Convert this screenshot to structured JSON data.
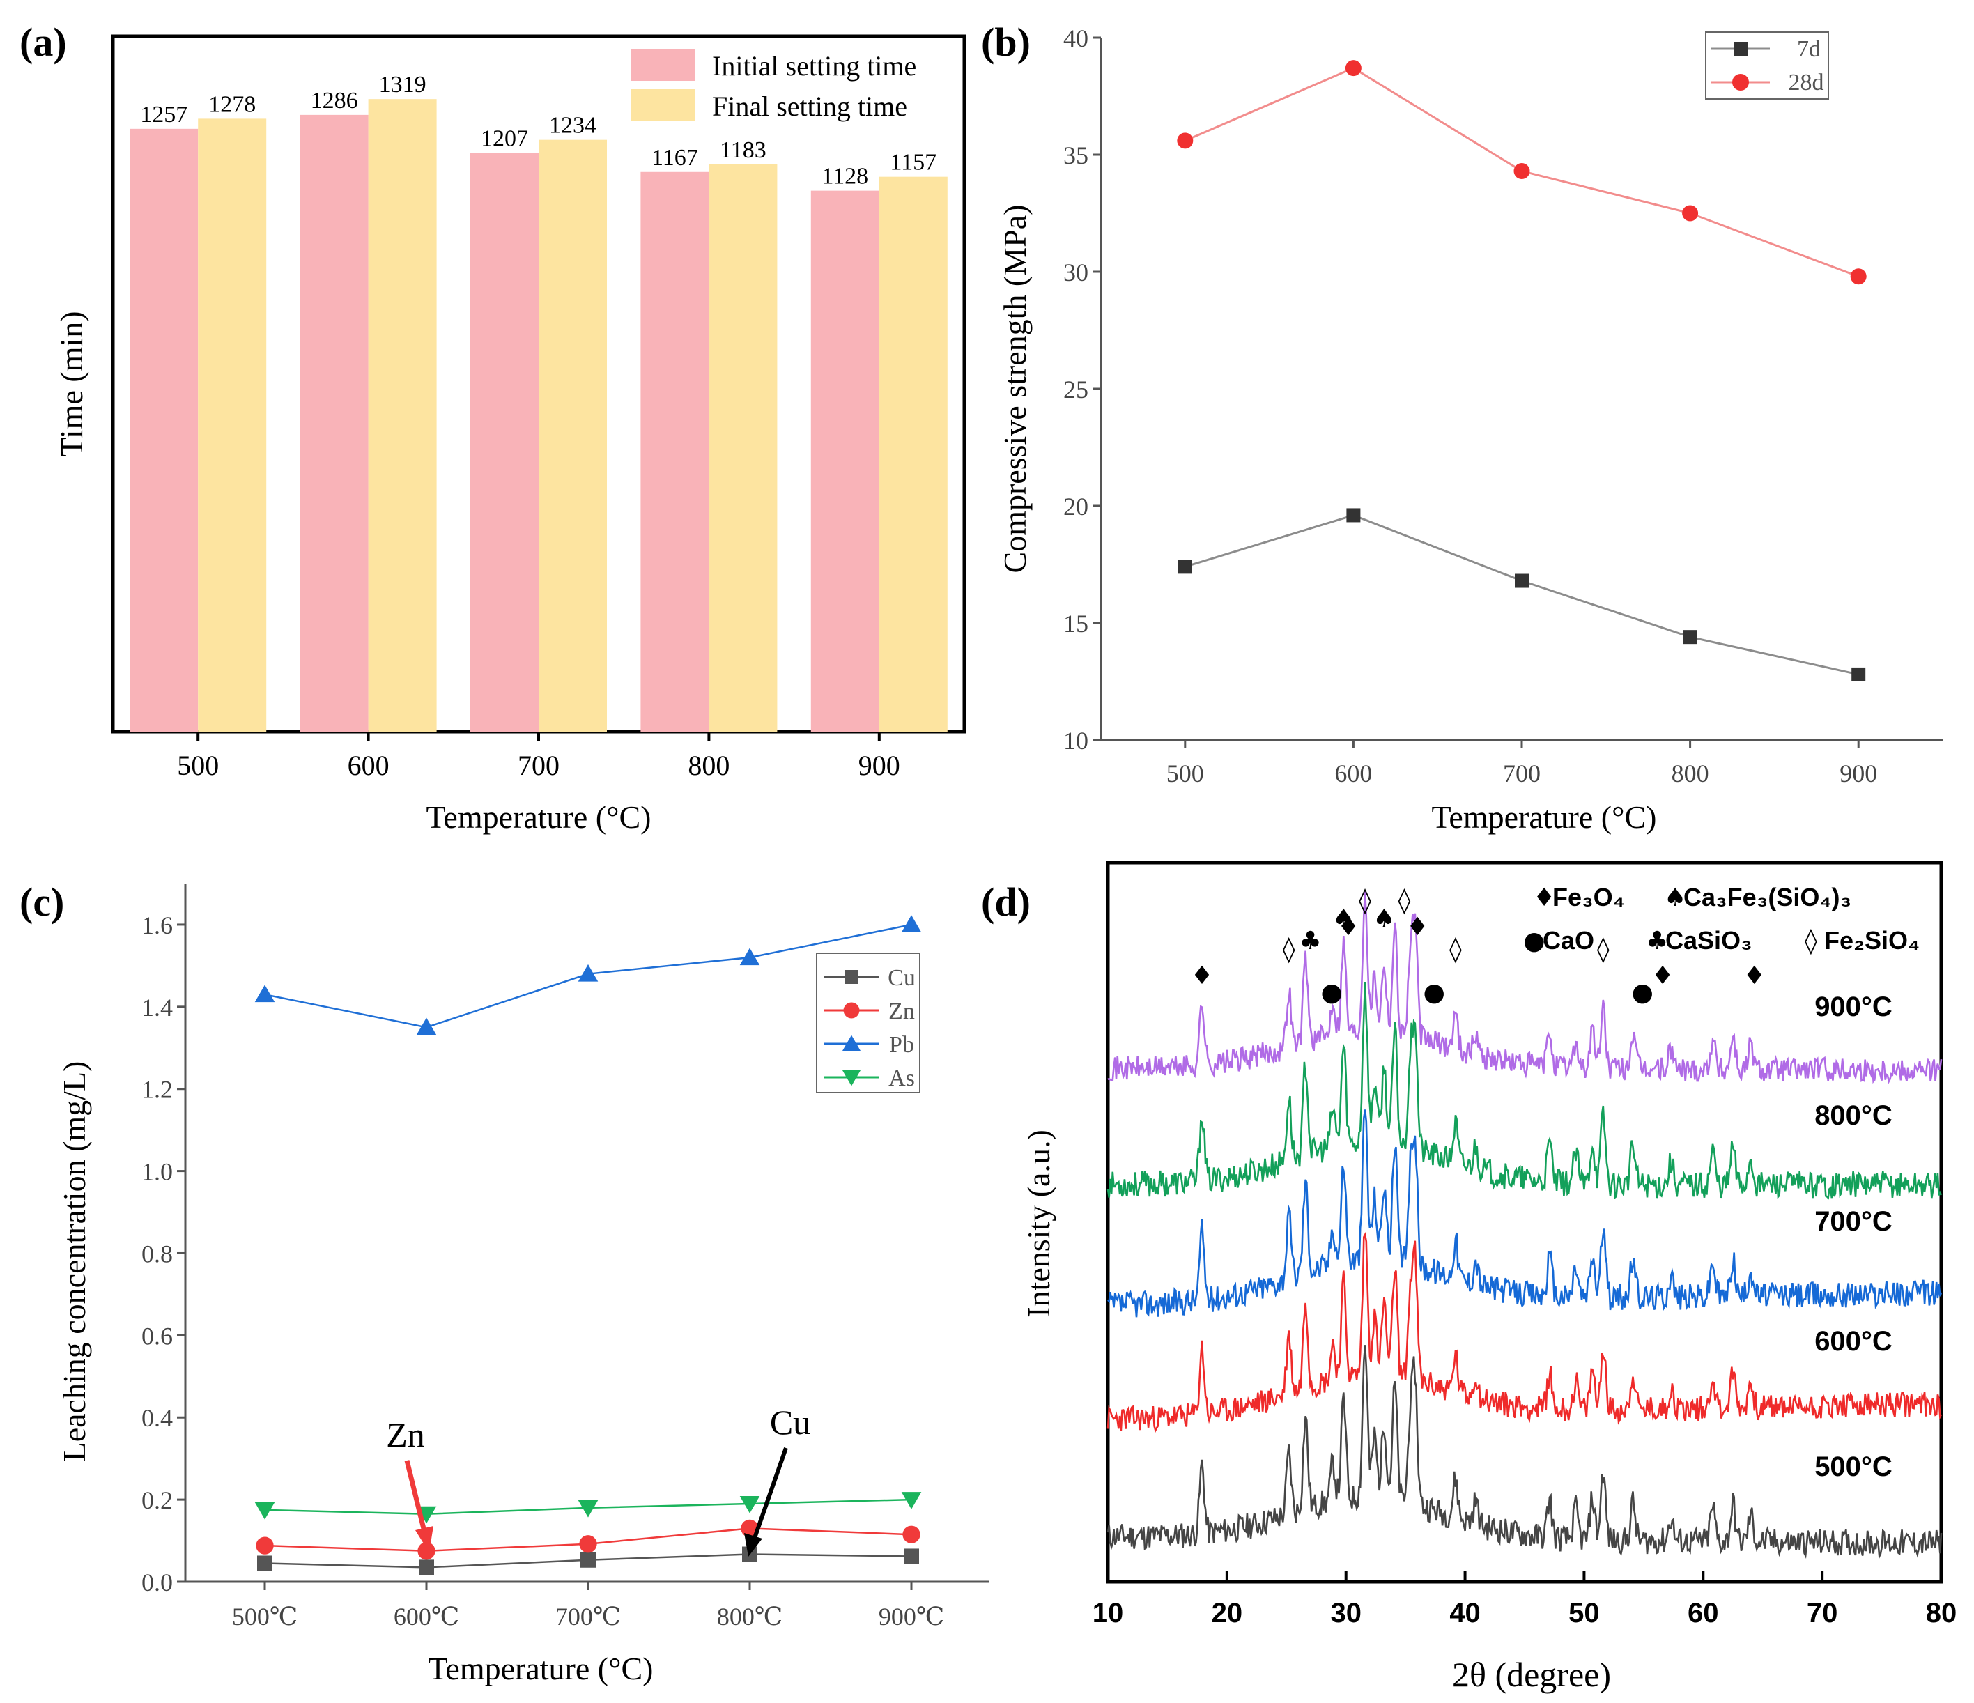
{
  "chart_data": [
    {
      "id": "a",
      "panel_label": "(a)",
      "type": "bar",
      "title": "",
      "xlabel": "Temperature (°C)",
      "ylabel": "Time (min)",
      "categories": [
        "500",
        "600",
        "700",
        "800",
        "900"
      ],
      "ylim": [
        0,
        1450
      ],
      "grid": false,
      "legend_position": "top-right",
      "series": [
        {
          "name": "Initial setting time",
          "color": "#f9b3b8",
          "values": [
            1257,
            1286,
            1207,
            1167,
            1128
          ]
        },
        {
          "name": "Final setting time",
          "color": "#fde4a0",
          "values": [
            1278,
            1319,
            1234,
            1183,
            1157
          ]
        }
      ]
    },
    {
      "id": "b",
      "panel_label": "(b)",
      "type": "line",
      "title": "",
      "xlabel": "Temperature (°C)",
      "ylabel": "Compressive strength (MPa)",
      "x": [
        500,
        600,
        700,
        800,
        900
      ],
      "xlim": [
        450,
        950
      ],
      "ylim": [
        10,
        40
      ],
      "xticks": [
        "500",
        "600",
        "700",
        "800",
        "900"
      ],
      "yticks": [
        "10",
        "15",
        "20",
        "25",
        "30",
        "35",
        "40"
      ],
      "grid": false,
      "legend_position": "top-right",
      "series": [
        {
          "name": "7d",
          "color": "#333333",
          "line_color": "#8c8c8c",
          "marker": "square",
          "values": [
            17.4,
            19.6,
            16.8,
            14.4,
            12.8
          ]
        },
        {
          "name": "28d",
          "color": "#f03030",
          "line_color": "#f28c8c",
          "marker": "circle",
          "values": [
            35.6,
            38.7,
            34.3,
            32.5,
            29.8
          ]
        }
      ]
    },
    {
      "id": "c",
      "panel_label": "(c)",
      "type": "line",
      "title": "",
      "xlabel": "Temperature (°C)",
      "ylabel": "Leaching concentration (mg/L)",
      "categories": [
        "500℃",
        "600℃",
        "700℃",
        "800℃",
        "900℃"
      ],
      "ylim": [
        0,
        1.7
      ],
      "yticks": [
        "0.0",
        "0.2",
        "0.4",
        "0.6",
        "0.8",
        "1.0",
        "1.2",
        "1.4",
        "1.6"
      ],
      "grid": false,
      "legend_position": "top-right",
      "annotations": [
        {
          "text": "Zn",
          "color": "#f03a3a",
          "points_to": "Zn at 600℃"
        },
        {
          "text": "Cu",
          "color": "#000000",
          "points_to": "Cu at 800℃"
        }
      ],
      "series": [
        {
          "name": "Cu",
          "color": "#555555",
          "marker": "square",
          "values": [
            0.045,
            0.035,
            0.053,
            0.067,
            0.062
          ]
        },
        {
          "name": "Zn",
          "color": "#f03a3a",
          "marker": "circle",
          "values": [
            0.088,
            0.075,
            0.092,
            0.13,
            0.115
          ]
        },
        {
          "name": "Pb",
          "color": "#1f6fd6",
          "marker": "triangle-up",
          "values": [
            1.43,
            1.35,
            1.48,
            1.52,
            1.6
          ]
        },
        {
          "name": "As",
          "color": "#1bb45c",
          "marker": "triangle-down",
          "values": [
            0.175,
            0.165,
            0.18,
            0.19,
            0.2
          ]
        }
      ]
    },
    {
      "id": "d",
      "panel_label": "(d)",
      "type": "line",
      "title": "",
      "xlabel": "2θ (degree)",
      "ylabel": "Intensity (a.u.)",
      "xlim": [
        10,
        80
      ],
      "xticks": [
        "10",
        "20",
        "30",
        "40",
        "50",
        "60",
        "70",
        "80"
      ],
      "yticks_shown": false,
      "grid": false,
      "legend_position": "top",
      "legend": [
        {
          "symbol": "♦",
          "phase": "Fe₃O₄"
        },
        {
          "symbol": "♠",
          "phase": "Ca₃Fe₃(SiO₄)₃"
        },
        {
          "symbol": "●",
          "phase": "CaO"
        },
        {
          "symbol": "♣",
          "phase": "CaSiO₃"
        },
        {
          "symbol": "◊",
          "phase": "Fe₂SiO₄"
        }
      ],
      "peak_markers_900C": [
        {
          "symbol": "♦",
          "x": 17.9
        },
        {
          "symbol": "◊",
          "x": 25.2
        },
        {
          "symbol": "♣",
          "x": 27.0
        },
        {
          "symbol": "●",
          "x": 28.8
        },
        {
          "symbol": "♦",
          "x": 30.2
        },
        {
          "symbol": "♠",
          "x": 29.8
        },
        {
          "symbol": "◊",
          "x": 31.6
        },
        {
          "symbol": "♠",
          "x": 33.2
        },
        {
          "symbol": "◊",
          "x": 34.9
        },
        {
          "symbol": "♦",
          "x": 36.0
        },
        {
          "symbol": "●",
          "x": 37.4
        },
        {
          "symbol": "◊",
          "x": 39.2
        },
        {
          "symbol": "◊",
          "x": 51.6
        },
        {
          "symbol": "●",
          "x": 54.9
        },
        {
          "symbol": "♦",
          "x": 56.6
        },
        {
          "symbol": "♦",
          "x": 64.3
        }
      ],
      "peaks": [
        {
          "x": 17.9,
          "h": 0.9
        },
        {
          "x": 25.2,
          "h": 0.8
        },
        {
          "x": 26.6,
          "h": 1.2
        },
        {
          "x": 28.9,
          "h": 0.5
        },
        {
          "x": 29.8,
          "h": 1.3
        },
        {
          "x": 31.6,
          "h": 2.0
        },
        {
          "x": 32.4,
          "h": 0.8
        },
        {
          "x": 33.2,
          "h": 1.0
        },
        {
          "x": 34.1,
          "h": 1.5
        },
        {
          "x": 35.4,
          "h": 1.1
        },
        {
          "x": 35.8,
          "h": 1.6
        },
        {
          "x": 39.2,
          "h": 0.5
        },
        {
          "x": 40.9,
          "h": 0.3
        },
        {
          "x": 47.1,
          "h": 0.5
        },
        {
          "x": 49.3,
          "h": 0.4
        },
        {
          "x": 50.7,
          "h": 0.55
        },
        {
          "x": 51.6,
          "h": 0.9
        },
        {
          "x": 54.1,
          "h": 0.5
        },
        {
          "x": 57.3,
          "h": 0.3
        },
        {
          "x": 60.8,
          "h": 0.45
        },
        {
          "x": 62.5,
          "h": 0.5
        },
        {
          "x": 64.0,
          "h": 0.35
        }
      ],
      "series": [
        {
          "name": "500°C",
          "color": "#454545",
          "seed": 11
        },
        {
          "name": "600°C",
          "color": "#ef2a2a",
          "seed": 23
        },
        {
          "name": "700°C",
          "color": "#1569d6",
          "seed": 37
        },
        {
          "name": "800°C",
          "color": "#13a05a",
          "seed": 53
        },
        {
          "name": "900°C",
          "color": "#b06be6",
          "seed": 71
        }
      ]
    }
  ]
}
